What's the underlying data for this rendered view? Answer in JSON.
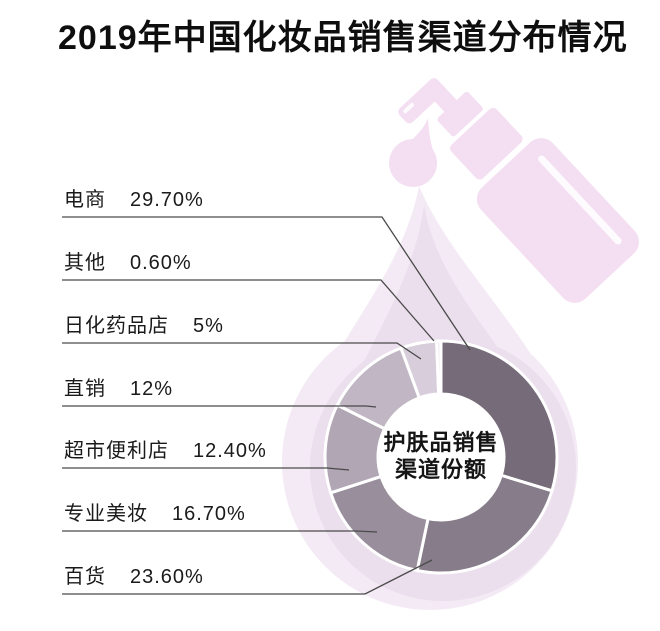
{
  "title": "2019年中国化妆品销售渠道分布情况",
  "center": {
    "line1": "护肤品销售",
    "line2": "渠道份额"
  },
  "channels": [
    {
      "name": "电商",
      "value": 29.7,
      "label": "29.70%",
      "color": "#756b79"
    },
    {
      "name": "其他",
      "value": 0.6,
      "label": "0.60%",
      "color": "#f0eaf2"
    },
    {
      "name": "日化药品店",
      "value": 5,
      "label": "5%",
      "color": "#d8cedb"
    },
    {
      "name": "直销",
      "value": 12,
      "label": "12%",
      "color": "#c1b7c4"
    },
    {
      "name": "超市便利店",
      "value": 12.4,
      "label": "12.40%",
      "color": "#b1a6b4"
    },
    {
      "name": "专业美妆",
      "value": 16.7,
      "label": "16.70%",
      "color": "#998e9c"
    },
    {
      "name": "百货",
      "value": 23.6,
      "label": "23.60%",
      "color": "#877d8a"
    }
  ],
  "chart_data": {
    "type": "pie",
    "donut": true,
    "title": "2019年中国化妆品销售渠道分布情况",
    "center_label": "护肤品销售渠道份额",
    "unit": "%",
    "categories": [
      "电商",
      "其他",
      "日化药品店",
      "直销",
      "超市便利店",
      "专业美妆",
      "百货"
    ],
    "values": [
      29.7,
      0.6,
      5,
      12,
      12.4,
      16.7,
      23.6
    ],
    "value_labels": [
      "29.70%",
      "0.60%",
      "5%",
      "12%",
      "12.40%",
      "16.70%",
      "23.60%"
    ],
    "slice_colors": [
      "#756b79",
      "#f0eaf2",
      "#d8cedb",
      "#c1b7c4",
      "#b1a6b4",
      "#998e9c",
      "#877d8a"
    ],
    "clockwise_draw_order_from_top": [
      0,
      6,
      5,
      4,
      3,
      2,
      1
    ],
    "legend_position": "left",
    "grid": false
  },
  "colors": {
    "background": "#ffffff",
    "drop_outer": "#f4eaf5",
    "drop_inner": "#ebdeed",
    "bottle": "#f4dff2",
    "leader_line": "#4a4a4a",
    "donut_gap": "#ffffff",
    "text": "#1a1a1a"
  }
}
